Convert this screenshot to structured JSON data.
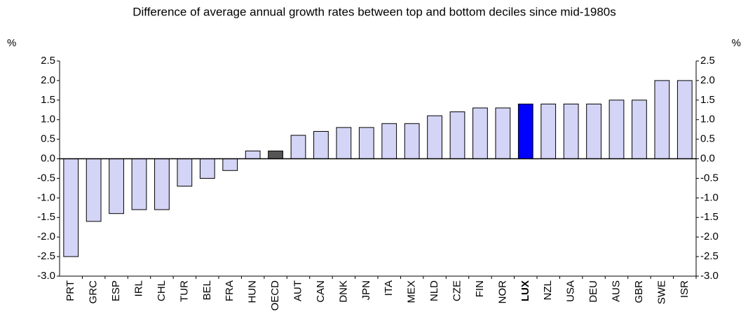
{
  "chart_data": {
    "type": "bar",
    "subtitle": "Difference of average annual growth rates between top and bottom deciles since mid-1980s",
    "y_unit": "%",
    "y2_unit": "%",
    "categories": [
      "PRT",
      "GRC",
      "ESP",
      "IRL",
      "CHL",
      "TUR",
      "BEL",
      "FRA",
      "HUN",
      "OECD",
      "AUT",
      "CAN",
      "DNK",
      "JPN",
      "ITA",
      "MEX",
      "NLD",
      "CZE",
      "FIN",
      "NOR",
      "LUX",
      "NZL",
      "USA",
      "DEU",
      "AUS",
      "GBR",
      "SWE",
      "ISR"
    ],
    "values": [
      -2.5,
      -1.6,
      -1.4,
      -1.3,
      -1.3,
      -0.7,
      -0.5,
      -0.3,
      0.2,
      0.2,
      0.6,
      0.7,
      0.8,
      0.8,
      0.9,
      0.9,
      1.1,
      1.2,
      1.3,
      1.3,
      1.4,
      1.4,
      1.4,
      1.4,
      1.5,
      1.5,
      2.0,
      2.0
    ],
    "colors": [
      "#d4d4f7",
      "#d4d4f7",
      "#d4d4f7",
      "#d4d4f7",
      "#d4d4f7",
      "#d4d4f7",
      "#d4d4f7",
      "#d4d4f7",
      "#d4d4f7",
      "#555555",
      "#d4d4f7",
      "#d4d4f7",
      "#d4d4f7",
      "#d4d4f7",
      "#d4d4f7",
      "#d4d4f7",
      "#d4d4f7",
      "#d4d4f7",
      "#d4d4f7",
      "#d4d4f7",
      "#0000ff",
      "#d4d4f7",
      "#d4d4f7",
      "#d4d4f7",
      "#d4d4f7",
      "#d4d4f7",
      "#d4d4f7",
      "#d4d4f7"
    ],
    "highlight_category": "LUX",
    "ylim": [
      -3.0,
      2.5
    ],
    "yticks": [
      2.5,
      {
        "value": 2.0,
        "label": "2.0"
      },
      1.5,
      {
        "value": 1.0,
        "label": "1.0"
      },
      0.5,
      {
        "value": 0.0,
        "label": "0.0"
      },
      -0.5,
      {
        "value": -1.0,
        "label": "-1.0"
      },
      -1.5,
      {
        "value": -2.0,
        "label": "-2.0"
      },
      -2.5,
      {
        "value": -3.0,
        "label": "-3.0"
      }
    ],
    "y2lim": [
      -3.0,
      2.5
    ],
    "y2ticks": [
      2.5,
      {
        "value": 2.0,
        "label": "2.0"
      },
      1.5,
      {
        "value": 1.0,
        "label": "1.0"
      },
      0.5,
      {
        "value": 0.0,
        "label": "0.0"
      },
      -0.5,
      {
        "value": -1.0,
        "label": "-1.0"
      },
      -1.5,
      {
        "value": -2.0,
        "label": "-2.0"
      },
      -2.5,
      {
        "value": -3.0,
        "label": "-3.0"
      }
    ],
    "grid": false
  }
}
